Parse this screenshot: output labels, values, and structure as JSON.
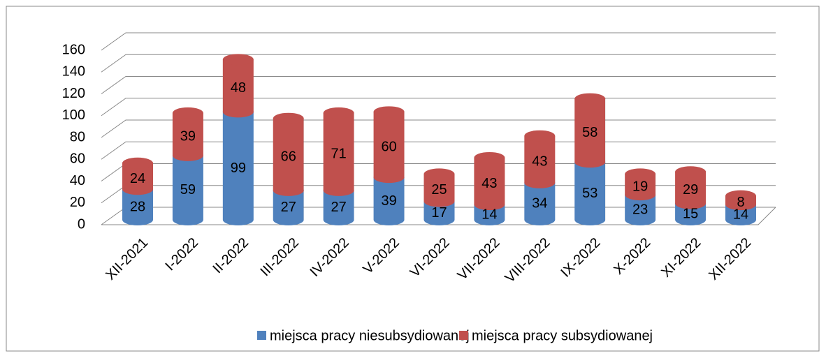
{
  "chart_data": {
    "type": "bar3d_stacked",
    "categories": [
      "XII-2021",
      "I-2022",
      "II-2022",
      "III-2022",
      "IV-2022",
      "V-2022",
      "VI-2022",
      "VII-2022",
      "VIII-2022",
      "IX-2022",
      "X-2022",
      "XI-2022",
      "XII-2022"
    ],
    "series": [
      {
        "name": "miejsca pracy niesubsydiowanej",
        "color": "#4f81bd",
        "values": [
          28,
          59,
          99,
          27,
          27,
          39,
          17,
          14,
          34,
          53,
          23,
          15,
          14
        ]
      },
      {
        "name": "miejsca pracy subsydiowanej",
        "color": "#c0504d",
        "values": [
          24,
          39,
          48,
          66,
          71,
          60,
          25,
          43,
          43,
          58,
          19,
          29,
          8
        ]
      }
    ],
    "ylim": [
      0,
      160
    ],
    "yticks": [
      0,
      20,
      40,
      60,
      80,
      100,
      120,
      140,
      160
    ],
    "grid": true,
    "legend": "bottom"
  }
}
